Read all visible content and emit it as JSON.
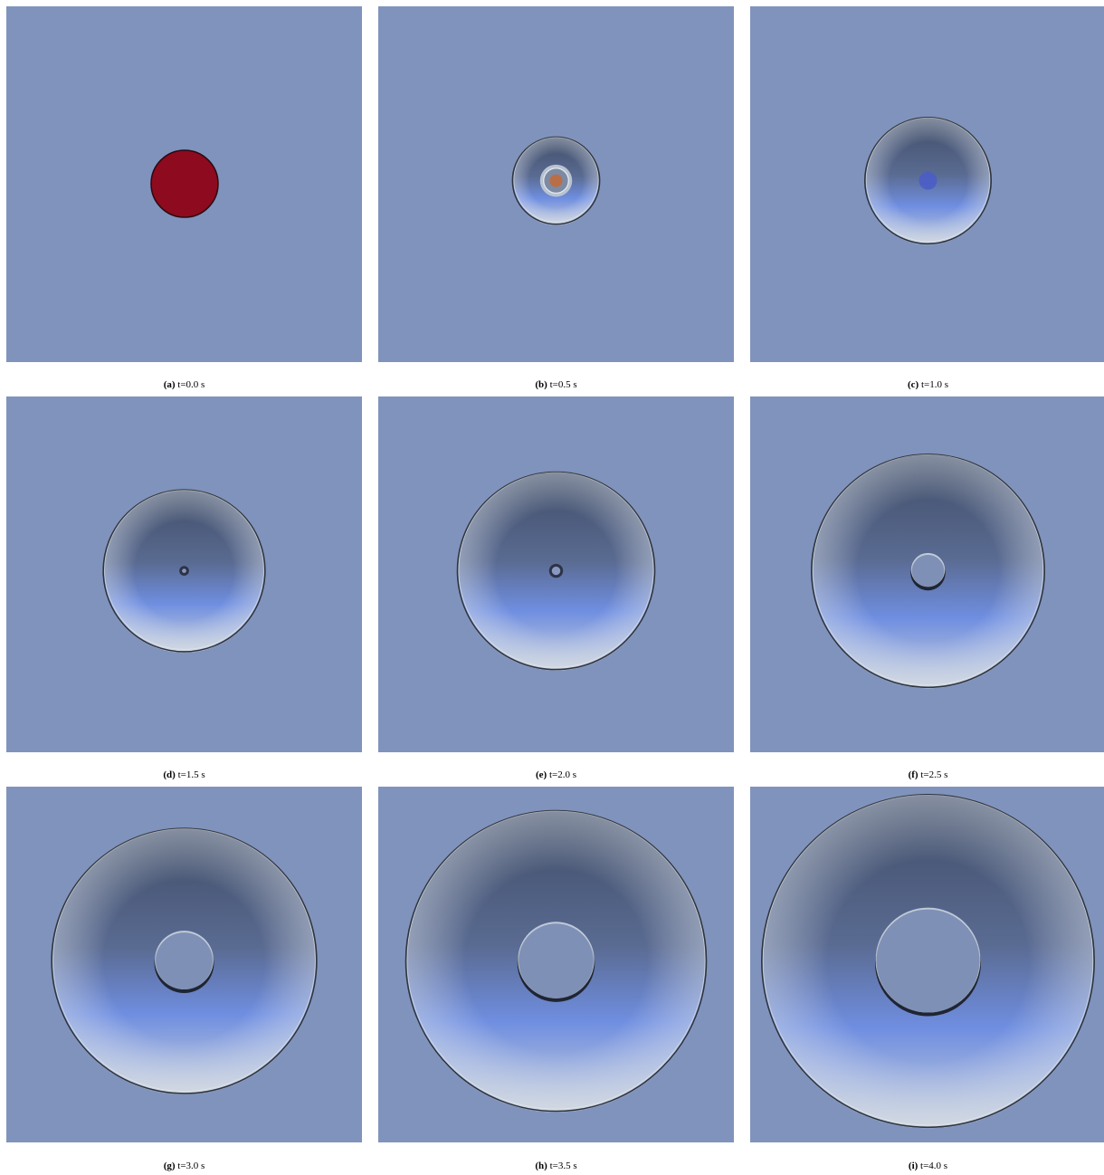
{
  "colors": {
    "background_field": "#7f93bd",
    "initial_blob": "#8e0a1e",
    "wave_dark": "#3f4c66",
    "wave_light": "#c8d0db",
    "wave_blue": "#6f8ee0"
  },
  "panels": [
    {
      "id": "a",
      "letter": "(a)",
      "time": "t=0.0 s",
      "stage": "initial"
    },
    {
      "id": "b",
      "letter": "(b)",
      "time": "t=0.5 s",
      "stage": "burst",
      "outer_r": 0.125,
      "inner_r": 0.035
    },
    {
      "id": "c",
      "letter": "(c)",
      "time": "t=1.0 s",
      "outer_r": 0.18,
      "inner_r": 0.0
    },
    {
      "id": "d",
      "letter": "(d)",
      "time": "t=1.5 s",
      "outer_r": 0.23,
      "inner_r": 0.006
    },
    {
      "id": "e",
      "letter": "(e)",
      "time": "t=2.0 s",
      "outer_r": 0.28,
      "inner_r": 0.012
    },
    {
      "id": "f",
      "letter": "(f)",
      "time": "t=2.5 s",
      "outer_r": 0.33,
      "inner_r": 0.045
    },
    {
      "id": "g",
      "letter": "(g)",
      "time": "t=3.0 s",
      "outer_r": 0.375,
      "inner_r": 0.08
    },
    {
      "id": "h",
      "letter": "(h)",
      "time": "t=3.5 s",
      "outer_r": 0.425,
      "inner_r": 0.105
    },
    {
      "id": "i",
      "letter": "(i)",
      "time": "t=4.0 s",
      "outer_r": 0.47,
      "inner_r": 0.145
    }
  ]
}
